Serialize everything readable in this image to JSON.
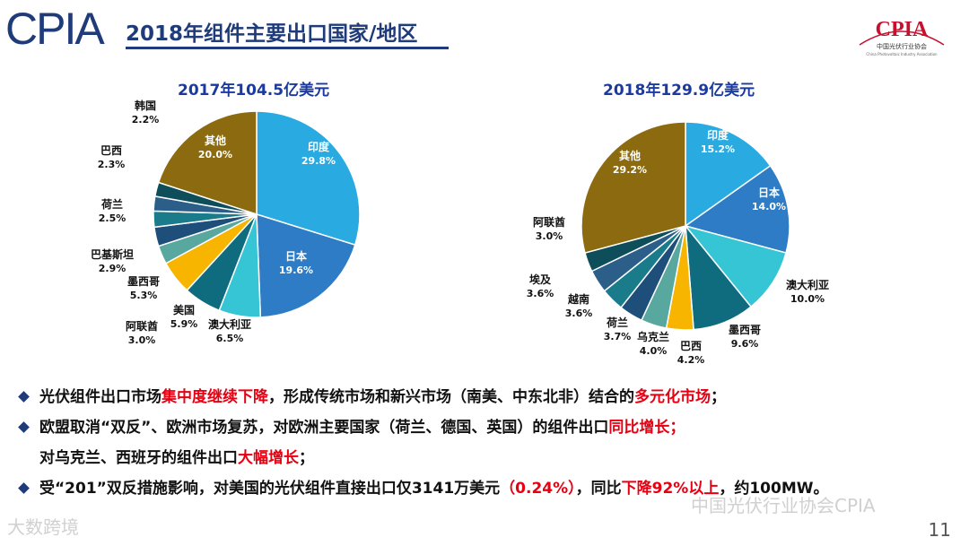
{
  "header": {
    "logo": "CPIA",
    "title": "2018年组件主要出口国家/地区",
    "brand_logo": "CPIA",
    "brand_subtitle": "中国光伏行业协会",
    "brand_subtitle_en": "China Photovoltaic Industry Association"
  },
  "chart_data": [
    {
      "type": "pie",
      "title": "2017年104.5亿美元",
      "slices": [
        {
          "name": "印度",
          "value": 29.8,
          "label": "29.8%",
          "color": "#29abe2"
        },
        {
          "name": "日本",
          "value": 19.6,
          "label": "19.6%",
          "color": "#2e7cc5"
        },
        {
          "name": "澳大利亚",
          "value": 6.5,
          "label": "6.5%",
          "color": "#35c5d5"
        },
        {
          "name": "美国",
          "value": 5.9,
          "label": "5.9%",
          "color": "#0f6c7e"
        },
        {
          "name": "墨西哥",
          "value": 5.3,
          "label": "5.3%",
          "color": "#f7b500"
        },
        {
          "name": "巴基斯坦",
          "value": 2.9,
          "label": "2.9%",
          "color": "#58a8a0"
        },
        {
          "name": "阿联酋",
          "value": 3.0,
          "label": "3.0%",
          "color": "#1d4f7a"
        },
        {
          "name": "荷兰",
          "value": 2.5,
          "label": "2.5%",
          "color": "#1a7c8a"
        },
        {
          "name": "巴西",
          "value": 2.3,
          "label": "2.3%",
          "color": "#2b5f8a"
        },
        {
          "name": "韩国",
          "value": 2.2,
          "label": "2.2%",
          "color": "#0e4d5a"
        },
        {
          "name": "其他",
          "value": 20.0,
          "label": "20.0%",
          "color": "#8b6a10"
        }
      ]
    },
    {
      "type": "pie",
      "title": "2018年129.9亿美元",
      "slices": [
        {
          "name": "印度",
          "value": 15.2,
          "label": "15.2%",
          "color": "#29abe2"
        },
        {
          "name": "日本",
          "value": 14.0,
          "label": "14.0%",
          "color": "#2e7cc5"
        },
        {
          "name": "澳大利亚",
          "value": 10.0,
          "label": "10.0%",
          "color": "#35c5d5"
        },
        {
          "name": "墨西哥",
          "value": 9.6,
          "label": "9.6%",
          "color": "#0f6c7e"
        },
        {
          "name": "巴西",
          "value": 4.2,
          "label": "4.2%",
          "color": "#f7b500"
        },
        {
          "name": "乌克兰",
          "value": 4.0,
          "label": "4.0%",
          "color": "#58a8a0"
        },
        {
          "name": "荷兰",
          "value": 3.7,
          "label": "3.7%",
          "color": "#1d4f7a"
        },
        {
          "name": "越南",
          "value": 3.6,
          "label": "3.6%",
          "color": "#1a7c8a"
        },
        {
          "name": "埃及",
          "value": 3.6,
          "label": "3.6%",
          "color": "#2b5f8a"
        },
        {
          "name": "阿联酋",
          "value": 3.0,
          "label": "3.0%",
          "color": "#0e4d5a"
        },
        {
          "name": "其他",
          "value": 29.2,
          "label": "29.2%",
          "color": "#8b6a10"
        }
      ]
    }
  ],
  "bullets": [
    {
      "parts": [
        {
          "text": "光伏组件出口市场",
          "red": false
        },
        {
          "text": "集中度继续下降",
          "red": true
        },
        {
          "text": "，形成传统市场和新兴市场（南美、中东北非）结合的",
          "red": false
        },
        {
          "text": "多元化市场",
          "red": true
        },
        {
          "text": "；",
          "red": false
        }
      ]
    },
    {
      "parts": [
        {
          "text": "欧盟取消“双反”、欧洲市场复苏，对欧洲主要国家（荷兰、德国、英国）的组件出口",
          "red": false
        },
        {
          "text": "同比增长",
          "red": true
        },
        {
          "text": "；",
          "red": true
        }
      ]
    },
    {
      "parts": [
        {
          "text": "对乌克兰、西班牙的组件出口",
          "red": false
        },
        {
          "text": "大幅增长",
          "red": true
        },
        {
          "text": "；",
          "red": false
        }
      ],
      "no_bullet": true
    },
    {
      "parts": [
        {
          "text": "受“201”双反措施影响，对美国的光伏组件直接出口仅3141万美元",
          "red": false
        },
        {
          "text": "（0.24%）",
          "red": true
        },
        {
          "text": "，同比",
          "red": false
        },
        {
          "text": "下降92%以上",
          "red": true
        },
        {
          "text": "，约100MW。",
          "red": false
        }
      ]
    }
  ],
  "footer": {
    "page_number": "11",
    "watermark_left": "大数跨境",
    "watermark_right": "中国光伏行业协会CPIA"
  }
}
